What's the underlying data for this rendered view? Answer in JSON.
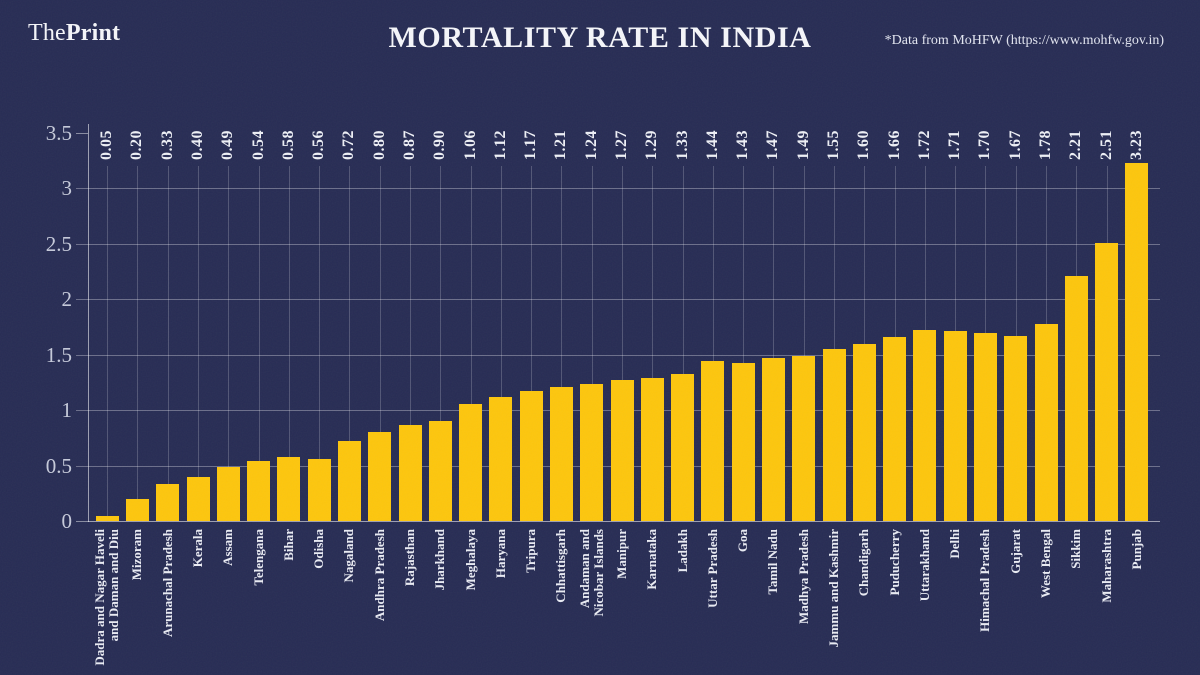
{
  "header": {
    "logo_part1": "The",
    "logo_part2": "Print",
    "title": "MORTALITY RATE IN INDIA",
    "source_note": "*Data from MoHFW (https://www.mohfw.gov.in)"
  },
  "chart_data": {
    "type": "bar",
    "title": "MORTALITY RATE IN INDIA",
    "xlabel": "",
    "ylabel": "",
    "ylim": [
      0,
      3.5
    ],
    "yticks": [
      0,
      0.5,
      1,
      1.5,
      2,
      2.5,
      3,
      3.5
    ],
    "ytick_labels": [
      "0",
      "0.5",
      "1",
      "1.5",
      "2",
      "2.5",
      "3",
      "3.5"
    ],
    "grid": "horizontal gridlines at 0.5 steps plus faint vertical gridline per bar",
    "legend_position": "none",
    "bar_label_rotation": "90deg, reads bottom-to-top, aligned along top of plot",
    "category_label_rotation": "90deg, reads bottom-to-top, below axis",
    "categories": [
      "Dadra and Nagar Haveli\nand Daman and Diu",
      "Mizoram",
      "Arunachal Pradesh",
      "Kerala",
      "Assam",
      "Telengana",
      "Bihar",
      "Odisha",
      "Nagaland",
      "Andhra Pradesh",
      "Rajasthan",
      "Jharkhand",
      "Meghalaya",
      "Haryana",
      "Tripura",
      "Chhattisgarh",
      "Andaman and\nNicobar Islands",
      "Manipur",
      "Karnataka",
      "Ladakh",
      "Uttar Pradesh",
      "Goa",
      "Tamil Nadu",
      "Madhya Pradesh",
      "Jammu and Kashmir",
      "Chandigarh",
      "Puducherry",
      "Uttarakhand",
      "Delhi",
      "Himachal Pradesh",
      "Gujarat",
      "West Bengal",
      "Sikkim",
      "Maharashtra",
      "Punjab"
    ],
    "values": [
      0.05,
      0.2,
      0.33,
      0.4,
      0.49,
      0.54,
      0.58,
      0.56,
      0.72,
      0.8,
      0.87,
      0.9,
      1.06,
      1.12,
      1.17,
      1.21,
      1.24,
      1.27,
      1.29,
      1.33,
      1.44,
      1.43,
      1.47,
      1.49,
      1.55,
      1.6,
      1.66,
      1.72,
      1.71,
      1.7,
      1.67,
      1.78,
      2.21,
      2.51,
      3.23
    ],
    "bar_labels": [
      "0.05",
      "0.20",
      "0.33",
      "0.40",
      "0.49",
      "0.54",
      "0.58",
      "0.56",
      "0.72",
      "0.80",
      "0.87",
      "0.90",
      "1.06",
      "1.12",
      "1.17",
      "1.21",
      "1.24",
      "1.27",
      "1.29",
      "1.33",
      "1.44",
      "1.43",
      "1.47",
      "1.49",
      "1.55",
      "1.60",
      "1.66",
      "1.72",
      "1.71",
      "1.70",
      "1.67",
      "1.78",
      "2.21",
      "2.51",
      "3.23"
    ],
    "colors": {
      "background": "#272C54",
      "bar": "#FDC60D",
      "title_text": "#F5F6FA",
      "value_label_text": "#EEF0F6",
      "category_label_text": "#E9EBF3",
      "ytick_text": "#C6CADA"
    }
  }
}
